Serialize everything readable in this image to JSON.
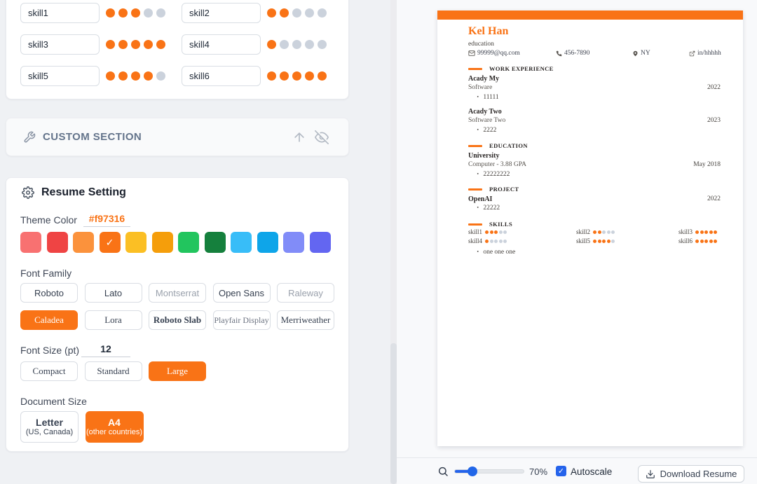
{
  "editor": {
    "skills_panel": {
      "skills": [
        {
          "name": "skill1",
          "level": 3
        },
        {
          "name": "skill2",
          "level": 2
        },
        {
          "name": "skill3",
          "level": 5
        },
        {
          "name": "skill4",
          "level": 1
        },
        {
          "name": "skill5",
          "level": 4
        },
        {
          "name": "skill6",
          "level": 5
        }
      ]
    },
    "custom_section": {
      "title": "CUSTOM SECTION"
    },
    "settings": {
      "title": "Resume Setting",
      "theme_color_label": "Theme Color",
      "theme_color_value": "#f97316",
      "palette": [
        {
          "hex": "#f87171",
          "selected": false
        },
        {
          "hex": "#ef4444",
          "selected": false
        },
        {
          "hex": "#fb923c",
          "selected": false
        },
        {
          "hex": "#f97316",
          "selected": true
        },
        {
          "hex": "#fbbf24",
          "selected": false
        },
        {
          "hex": "#f59e0b",
          "selected": false
        },
        {
          "hex": "#22c55e",
          "selected": false
        },
        {
          "hex": "#15803d",
          "selected": false
        },
        {
          "hex": "#38bdf8",
          "selected": false
        },
        {
          "hex": "#0ea5e9",
          "selected": false
        },
        {
          "hex": "#818cf8",
          "selected": false
        },
        {
          "hex": "#6366f1",
          "selected": false
        }
      ],
      "font_family_label": "Font Family",
      "fonts": [
        {
          "label": "Roboto"
        },
        {
          "label": "Lato"
        },
        {
          "label": "Montserrat"
        },
        {
          "label": "Open Sans"
        },
        {
          "label": "Raleway"
        },
        {
          "label": "Caladea",
          "selected": true
        },
        {
          "label": "Lora"
        },
        {
          "label": "Roboto Slab"
        },
        {
          "label": "Playfair Display"
        },
        {
          "label": "Merriweather"
        }
      ],
      "font_size_label": "Font Size (pt)",
      "font_size_value": "12",
      "font_sizes": [
        {
          "label": "Compact"
        },
        {
          "label": "Standard"
        },
        {
          "label": "Large",
          "selected": true
        }
      ],
      "document_size_label": "Document Size",
      "document_sizes": [
        {
          "label": "Letter",
          "sub": "(US, Canada)",
          "selected": false
        },
        {
          "label": "A4",
          "sub": "(other countries)",
          "selected": true
        }
      ]
    }
  },
  "resume": {
    "name": "Kel Han",
    "role": "education",
    "contact": {
      "email": "99999@qq.com",
      "phone": "456-7890",
      "location": "NY",
      "link": "in/hhhhh"
    },
    "sections": {
      "work": {
        "title": "WORK EXPERIENCE",
        "entries": [
          {
            "company": "Acady My",
            "role": "Software",
            "date": "2022",
            "bullet": "11111"
          },
          {
            "company": "Acady Two",
            "role": "Software Two",
            "date": "2023",
            "bullet": "2222"
          }
        ]
      },
      "education": {
        "title": "EDUCATION",
        "entries": [
          {
            "school": "University",
            "degree": "Computer - 3.88 GPA",
            "date": "May 2018",
            "bullet": "22222222"
          }
        ]
      },
      "project": {
        "title": "PROJECT",
        "entries": [
          {
            "name": "OpenAI",
            "date": "2022",
            "bullet": "22222"
          }
        ]
      },
      "skills": {
        "title": "SKILLS",
        "items": [
          {
            "name": "skill1",
            "level": 3
          },
          {
            "name": "skill2",
            "level": 2
          },
          {
            "name": "skill3",
            "level": 5
          },
          {
            "name": "skill4",
            "level": 1
          },
          {
            "name": "skill5",
            "level": 4
          },
          {
            "name": "skill6",
            "level": 5
          }
        ],
        "bullet": "one one one"
      }
    }
  },
  "toolbar": {
    "zoom_value": "70%",
    "autoscale_label": "Autoscale",
    "autoscale_checked": true,
    "download_label": "Download Resume",
    "check_glyph": "✓"
  },
  "colors": {
    "accent": "#f97316",
    "slider_blue": "#2563eb"
  }
}
